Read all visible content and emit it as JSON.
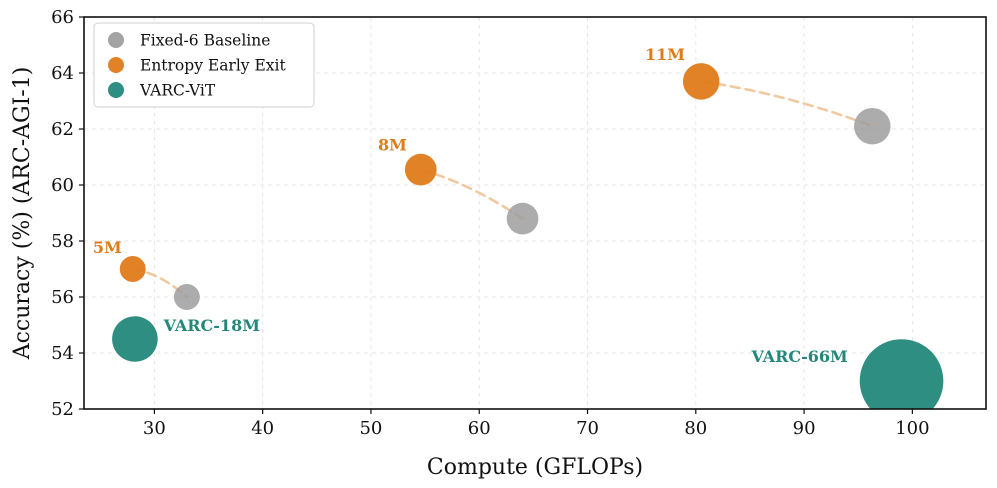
{
  "chart_data": {
    "type": "scatter",
    "xlabel": "Compute (GFLOPs)",
    "ylabel": "Accuracy (%) (ARC-AGI-1)",
    "xlim": [
      23.5,
      106.8
    ],
    "ylim": [
      52,
      66
    ],
    "xticks": [
      30,
      40,
      50,
      60,
      70,
      80,
      90,
      100
    ],
    "yticks": [
      52,
      54,
      56,
      58,
      60,
      62,
      64,
      66
    ],
    "grid": true,
    "legend_position": "top-left",
    "colors": {
      "baseline": "#9e9e9e",
      "early_exit": "#e07b1a",
      "varc": "#23887a",
      "connector": "#f0c9a0"
    },
    "legend": [
      {
        "name": "Fixed-6 Baseline",
        "key": "baseline"
      },
      {
        "name": "Entropy Early Exit",
        "key": "early_exit"
      },
      {
        "name": "VARC-ViT",
        "key": "varc"
      }
    ],
    "series": [
      {
        "name": "Fixed-6 Baseline",
        "key": "baseline",
        "points": [
          {
            "x": 33.0,
            "y": 56.0,
            "size": 5
          },
          {
            "x": 64.0,
            "y": 58.8,
            "size": 8
          },
          {
            "x": 96.3,
            "y": 62.1,
            "size": 11
          }
        ]
      },
      {
        "name": "Entropy Early Exit",
        "key": "early_exit",
        "points": [
          {
            "x": 28.0,
            "y": 57.0,
            "size": 5,
            "label": "5M"
          },
          {
            "x": 54.6,
            "y": 60.55,
            "size": 8,
            "label": "8M"
          },
          {
            "x": 80.5,
            "y": 63.7,
            "size": 11,
            "label": "11M"
          }
        ]
      },
      {
        "name": "VARC-ViT",
        "key": "varc",
        "points": [
          {
            "x": 28.2,
            "y": 54.5,
            "size": 18,
            "label": "VARC-18M"
          },
          {
            "x": 99.0,
            "y": 53.0,
            "size": 66,
            "label": "VARC-66M"
          }
        ]
      }
    ]
  }
}
